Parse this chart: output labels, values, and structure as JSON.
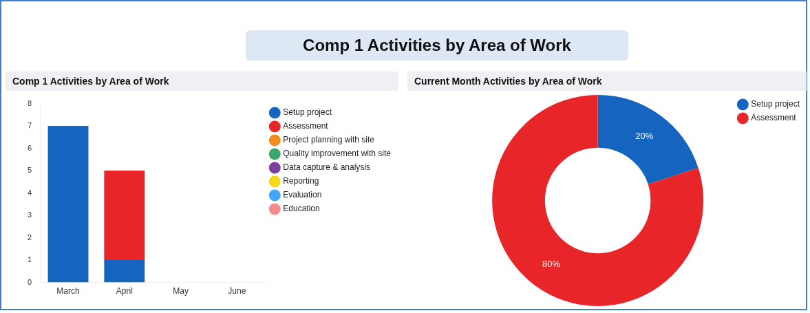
{
  "chart_data": [
    {
      "type": "other",
      "title": "Comp 1 Activities by Area of Work"
    },
    {
      "type": "bar",
      "title": "Comp 1 Activities by Area of Work",
      "stacked": true,
      "categories": [
        "March",
        "April",
        "May",
        "June"
      ],
      "ylim": [
        0,
        8
      ],
      "yticks": [
        0,
        1,
        2,
        3,
        4,
        5,
        6,
        7,
        8
      ],
      "grid": false,
      "legend": "right",
      "series": [
        {
          "name": "Setup project",
          "color": "#1565c0",
          "values": [
            7,
            1,
            null,
            null
          ]
        },
        {
          "name": "Assessment",
          "color": "#e8262a",
          "values": [
            null,
            4,
            null,
            null
          ]
        },
        {
          "name": "Project planning with site",
          "color": "#f58a1f",
          "values": [
            null,
            null,
            null,
            null
          ]
        },
        {
          "name": "Quality improvement with site",
          "color": "#3aa66a",
          "values": [
            null,
            null,
            null,
            null
          ]
        },
        {
          "name": "Data capture & analysis",
          "color": "#7b3fa0",
          "values": [
            null,
            null,
            null,
            null
          ]
        },
        {
          "name": "Reporting",
          "color": "#f6d81a",
          "values": [
            null,
            null,
            null,
            null
          ]
        },
        {
          "name": "Evaluation",
          "color": "#42a5f5",
          "values": [
            null,
            null,
            null,
            null
          ]
        },
        {
          "name": "Education",
          "color": "#f48a8a",
          "values": [
            null,
            null,
            null,
            null
          ]
        }
      ]
    },
    {
      "type": "donut",
      "title": "Current Month Activities by Area of Work",
      "categories": [
        "Setup project",
        "Assessment"
      ],
      "values": [
        20,
        80
      ],
      "colors": [
        "#1565c0",
        "#e8262a"
      ],
      "value_labels": [
        "20%",
        "80%"
      ],
      "legend": "top right"
    }
  ]
}
